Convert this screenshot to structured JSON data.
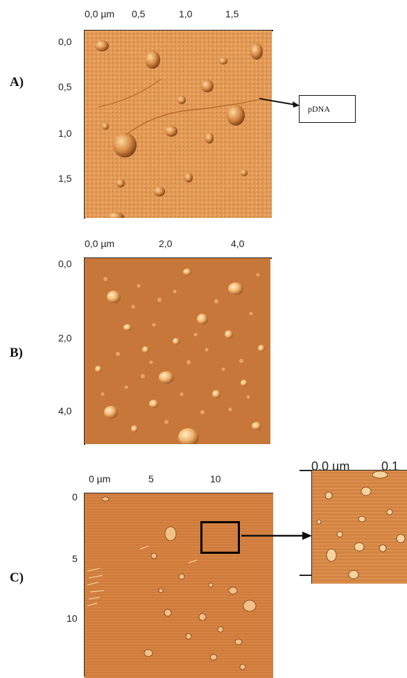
{
  "panels": {
    "a": {
      "letter": "A)",
      "x_ticks": [
        "0,0 µm",
        "0,5",
        "1,0",
        "1,5"
      ],
      "y_ticks": [
        "0,0",
        "0,5",
        "1,0",
        "1,5"
      ],
      "annotation": "pDNA"
    },
    "b": {
      "letter": "B)",
      "x_ticks": [
        "0,0 µm",
        "2,0",
        "4,0"
      ],
      "y_ticks": [
        "0,0",
        "2,0",
        "4,0"
      ]
    },
    "c": {
      "letter": "C)",
      "x_ticks": [
        "0 µm",
        "5",
        "10"
      ],
      "y_ticks": [
        "0",
        "5",
        "10"
      ],
      "inset_x_ticks": [
        "0,0 µm",
        "0,1"
      ]
    }
  },
  "colors": {
    "afm_light": "#e9a25d",
    "afm_mid": "#c87a3e",
    "afm_dark": "#8d4a1e"
  }
}
